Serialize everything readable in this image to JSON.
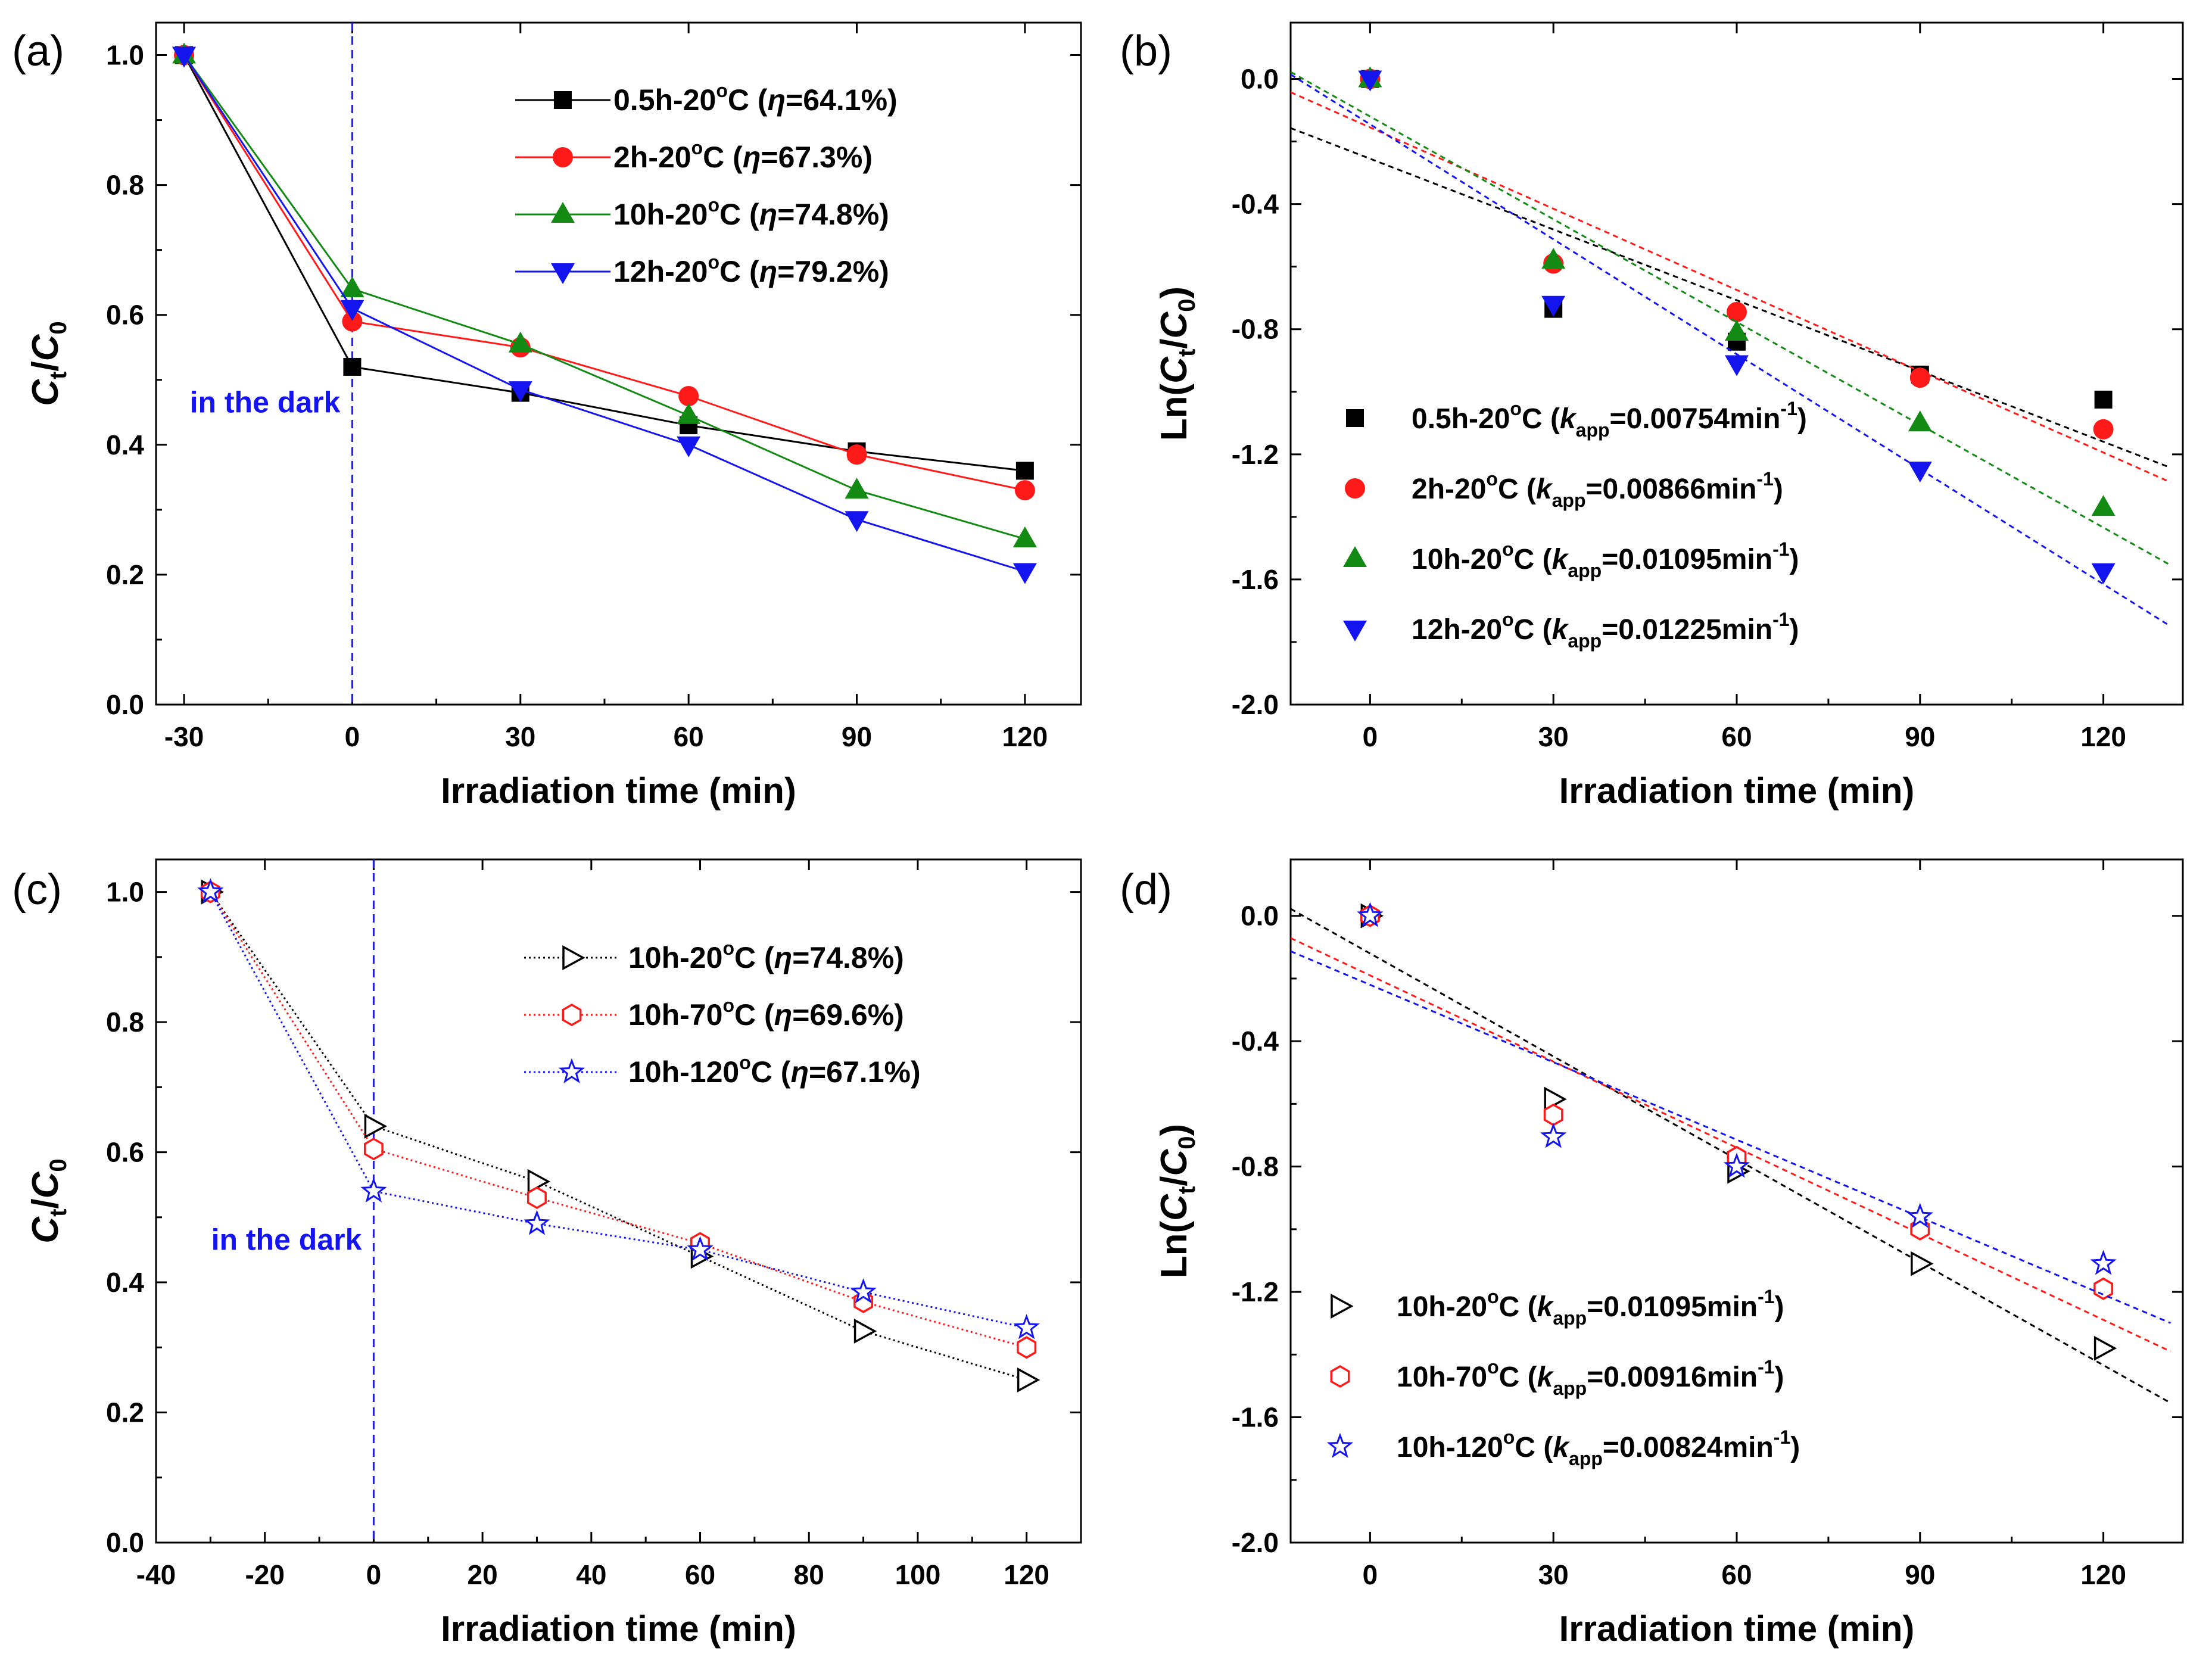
{
  "figure": {
    "colors": {
      "black": "#000000",
      "red": "#ff1a1a",
      "green": "#138a13",
      "blue": "#1414ee",
      "dark_line": "#2222cc"
    }
  },
  "chart_data": [
    {
      "id": "a",
      "panel_label": "(a)",
      "type": "line",
      "xlabel": "Irradiation time (min)",
      "ylabel": "C_t/C_0",
      "ylabel_parts": [
        "C",
        "t",
        "/",
        "C",
        "0"
      ],
      "xlim": [
        -35,
        130
      ],
      "ylim": [
        0,
        1.05
      ],
      "xticks": [
        -30,
        0,
        30,
        60,
        90,
        120
      ],
      "xtick_labels": [
        "-30",
        "0",
        "30",
        "60",
        "90",
        "120"
      ],
      "yticks": [
        0,
        0.2,
        0.4,
        0.6,
        0.8,
        1.0
      ],
      "ytick_labels": [
        "0.0",
        "0.2",
        "0.4",
        "0.6",
        "0.8",
        "1.0"
      ],
      "annotation": "in the dark",
      "dark_line_x": 0,
      "legend_position": "top-right",
      "x": [
        -30,
        0,
        30,
        60,
        90,
        120
      ],
      "series": [
        {
          "name": "0.5h-20°C (η=64.1%)",
          "parts": {
            "pre": "0.5h-20",
            "sup": "o",
            "mid": "C (",
            "it": "η",
            "post": "=64.1%)"
          },
          "color": "#000000",
          "marker": "square",
          "line": "solid",
          "values": [
            1.0,
            0.52,
            0.48,
            0.43,
            0.39,
            0.36
          ]
        },
        {
          "name": "2h-20°C (η=67.3%)",
          "parts": {
            "pre": "2h-20",
            "sup": "o",
            "mid": "C (",
            "it": "η",
            "post": "=67.3%)"
          },
          "color": "#ff1a1a",
          "marker": "circle",
          "line": "solid",
          "values": [
            1.0,
            0.59,
            0.55,
            0.475,
            0.385,
            0.33
          ]
        },
        {
          "name": "10h-20°C (η=74.8%)",
          "parts": {
            "pre": "10h-20",
            "sup": "o",
            "mid": "C (",
            "it": "η",
            "post": "=74.8%)"
          },
          "color": "#138a13",
          "marker": "triangle-up",
          "line": "solid",
          "values": [
            1.0,
            0.64,
            0.555,
            0.445,
            0.33,
            0.255
          ]
        },
        {
          "name": "12h-20°C (η=79.2%)",
          "parts": {
            "pre": "12h-20",
            "sup": "o",
            "mid": "C (",
            "it": "η",
            "post": "=79.2%)"
          },
          "color": "#1414ee",
          "marker": "triangle-down",
          "line": "solid",
          "values": [
            1.0,
            0.61,
            0.485,
            0.4,
            0.285,
            0.205
          ]
        }
      ]
    },
    {
      "id": "b",
      "panel_label": "(b)",
      "type": "scatter",
      "xlabel": "Irradiation time (min)",
      "ylabel": "Ln(C_t/C_0)",
      "ylabel_parts": [
        "Ln(",
        "C",
        "t",
        "/",
        "C",
        "0",
        ")"
      ],
      "xlim": [
        -13,
        133
      ],
      "ylim": [
        -2.0,
        0.18
      ],
      "xticks": [
        0,
        30,
        60,
        90,
        120
      ],
      "xtick_labels": [
        "0",
        "30",
        "60",
        "90",
        "120"
      ],
      "yticks": [
        -2.0,
        -1.6,
        -1.2,
        -0.8,
        -0.4,
        0.0
      ],
      "ytick_labels": [
        "-2.0",
        "-1.6",
        "-1.2",
        "-0.8",
        "-0.4",
        "0.0"
      ],
      "legend_position": "center-right",
      "x": [
        0,
        30,
        60,
        90,
        120
      ],
      "series": [
        {
          "name": "0.5h-20°C (k_app=0.00754min-1)",
          "parts": {
            "pre": "0.5h-20",
            "sup": "o",
            "mid": "C (",
            "k": "k",
            "sub": "app",
            "val": "=0.00754min",
            "exp": "-1",
            "end": ")"
          },
          "color": "#000000",
          "marker": "square",
          "values": [
            0.0,
            -0.735,
            -0.84,
            -0.945,
            -1.025
          ],
          "fit": {
            "slope": -0.00754,
            "intercept": -0.255
          }
        },
        {
          "name": "2h-20°C (k_app=0.00866min-1)",
          "parts": {
            "pre": "2h-20",
            "sup": "o",
            "mid": "C (",
            "k": "k",
            "sub": "app",
            "val": "=0.00866min",
            "exp": "-1",
            "end": ")"
          },
          "color": "#ff1a1a",
          "marker": "circle",
          "values": [
            0.0,
            -0.59,
            -0.745,
            -0.955,
            -1.12
          ],
          "fit": {
            "slope": -0.00866,
            "intercept": -0.155
          }
        },
        {
          "name": "10h-20°C (k_app=0.01095min-1)",
          "parts": {
            "pre": "10h-20",
            "sup": "o",
            "mid": "C (",
            "k": "k",
            "sub": "app",
            "val": "=0.01095min",
            "exp": "-1",
            "end": ")"
          },
          "color": "#138a13",
          "marker": "triangle-up",
          "values": [
            0.0,
            -0.58,
            -0.81,
            -1.1,
            -1.37
          ],
          "fit": {
            "slope": -0.01095,
            "intercept": -0.12
          }
        },
        {
          "name": "12h-20°C (k_app=0.01225min-1)",
          "parts": {
            "pre": "12h-20",
            "sup": "o",
            "mid": "C (",
            "k": "k",
            "sub": "app",
            "val": "=0.01225min",
            "exp": "-1",
            "end": ")"
          },
          "color": "#1414ee",
          "marker": "triangle-down",
          "values": [
            0.0,
            -0.72,
            -0.91,
            -1.25,
            -1.575
          ],
          "fit": {
            "slope": -0.01225,
            "intercept": -0.145
          }
        }
      ]
    },
    {
      "id": "c",
      "panel_label": "(c)",
      "type": "line",
      "xlabel": "Irradiation time (min)",
      "ylabel": "C_t/C_0",
      "ylabel_parts": [
        "C",
        "t",
        "/",
        "C",
        "0"
      ],
      "xlim": [
        -40,
        130
      ],
      "ylim": [
        0,
        1.05
      ],
      "xticks": [
        -40,
        -20,
        0,
        20,
        40,
        60,
        80,
        100,
        120
      ],
      "xtick_labels": [
        "-40",
        "-20",
        "0",
        "20",
        "40",
        "60",
        "80",
        "100",
        "120"
      ],
      "yticks": [
        0,
        0.2,
        0.4,
        0.6,
        0.8,
        1.0
      ],
      "ytick_labels": [
        "0.0",
        "0.2",
        "0.4",
        "0.6",
        "0.8",
        "1.0"
      ],
      "annotation": "in the dark",
      "dark_line_x": 0,
      "legend_position": "top-right",
      "x": [
        -30,
        0,
        30,
        60,
        90,
        120
      ],
      "series": [
        {
          "name": "10h-20°C (η=74.8%)",
          "parts": {
            "pre": "10h-20",
            "sup": "o",
            "mid": "C (",
            "it": "η",
            "post": "=74.8%)"
          },
          "color": "#000000",
          "marker": "open-triangle-right",
          "line": "dotted",
          "values": [
            1.0,
            0.64,
            0.555,
            0.44,
            0.325,
            0.25
          ]
        },
        {
          "name": "10h-70°C (η=69.6%)",
          "parts": {
            "pre": "10h-70",
            "sup": "o",
            "mid": "C (",
            "it": "η",
            "post": "=69.6%)"
          },
          "color": "#ff1a1a",
          "marker": "open-hexagon",
          "line": "dotted",
          "values": [
            1.0,
            0.605,
            0.53,
            0.46,
            0.37,
            0.3
          ]
        },
        {
          "name": "10h-120°C (η=67.1%)",
          "parts": {
            "pre": "10h-120",
            "sup": "o",
            "mid": "C (",
            "it": "η",
            "post": "=67.1%)"
          },
          "color": "#1414ee",
          "marker": "open-star",
          "line": "dotted",
          "values": [
            1.0,
            0.54,
            0.49,
            0.45,
            0.385,
            0.33
          ]
        }
      ]
    },
    {
      "id": "d",
      "panel_label": "(d)",
      "type": "scatter",
      "xlabel": "Irradiation time (min)",
      "ylabel": "Ln(C_t/C_0)",
      "ylabel_parts": [
        "Ln(",
        "C",
        "t",
        "/",
        "C",
        "0",
        ")"
      ],
      "xlim": [
        -13,
        133
      ],
      "ylim": [
        -2.0,
        0.18
      ],
      "xticks": [
        0,
        30,
        60,
        90,
        120
      ],
      "xtick_labels": [
        "0",
        "30",
        "60",
        "90",
        "120"
      ],
      "yticks": [
        -2.0,
        -1.6,
        -1.2,
        -0.8,
        -0.4,
        0.0
      ],
      "ytick_labels": [
        "-2.0",
        "-1.6",
        "-1.2",
        "-0.8",
        "-0.4",
        "0.0"
      ],
      "legend_position": "bottom-left",
      "x": [
        0,
        30,
        60,
        90,
        120
      ],
      "series": [
        {
          "name": "10h-20°C (k_app=0.01095min-1)",
          "parts": {
            "pre": "10h-20",
            "sup": "o",
            "mid": "C (",
            "k": "k",
            "sub": "app",
            "val": "=0.01095min",
            "exp": "-1",
            "end": ")"
          },
          "color": "#000000",
          "marker": "open-triangle-right",
          "values": [
            0.0,
            -0.585,
            -0.815,
            -1.11,
            -1.38
          ],
          "fit": {
            "slope": -0.01095,
            "intercept": -0.12
          }
        },
        {
          "name": "10h-70°C (k_app=0.00916min-1)",
          "parts": {
            "pre": "10h-70",
            "sup": "o",
            "mid": "C (",
            "k": "k",
            "sub": "app",
            "val": "=0.00916min",
            "exp": "-1",
            "end": ")"
          },
          "color": "#ff1a1a",
          "marker": "open-hexagon",
          "values": [
            0.0,
            -0.635,
            -0.77,
            -1.0,
            -1.19
          ],
          "fit": {
            "slope": -0.00916,
            "intercept": -0.19
          }
        },
        {
          "name": "10h-120°C (k_app=0.00824min-1)",
          "parts": {
            "pre": "10h-120",
            "sup": "o",
            "mid": "C (",
            "k": "k",
            "sub": "app",
            "val": "=0.00824min",
            "exp": "-1",
            "end": ")"
          },
          "color": "#1414ee",
          "marker": "open-star",
          "values": [
            0.0,
            -0.705,
            -0.8,
            -0.96,
            -1.11
          ],
          "fit": {
            "slope": -0.00824,
            "intercept": -0.22
          }
        }
      ]
    }
  ]
}
